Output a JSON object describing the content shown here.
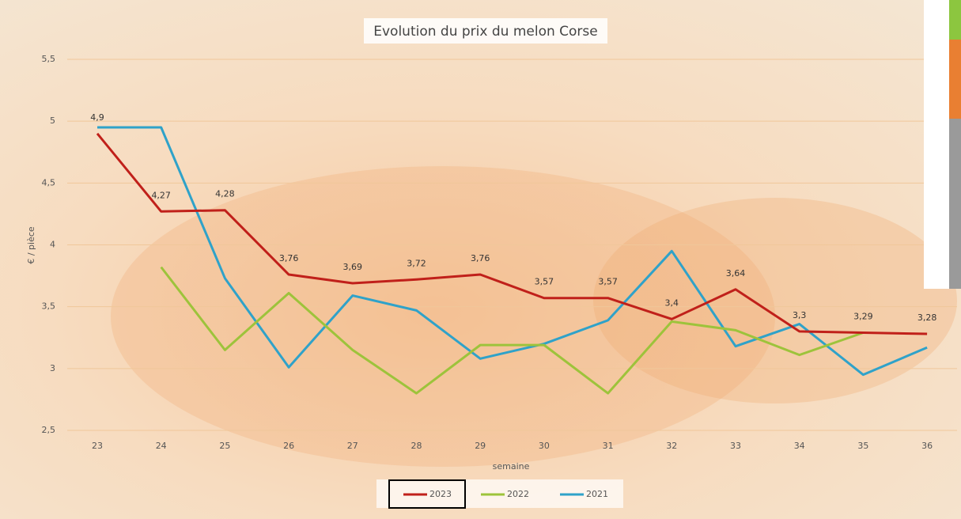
{
  "chart_data": {
    "type": "line",
    "title": "Evolution du prix du melon Corse",
    "x_label": "semaine",
    "y_label": "€ / pièce",
    "categories": [
      "23",
      "24",
      "25",
      "26",
      "27",
      "28",
      "29",
      "30",
      "31",
      "32",
      "33",
      "34",
      "35",
      "36"
    ],
    "series": [
      {
        "name": "2023",
        "color": "#c0201a",
        "values": [
          4.9,
          4.27,
          4.28,
          3.76,
          3.69,
          3.72,
          3.76,
          3.57,
          3.57,
          3.4,
          3.64,
          3.3,
          3.29,
          3.28
        ],
        "value_labels": [
          "4,9",
          "4,27",
          "4,28",
          "3,76",
          "3,69",
          "3,72",
          "3,76",
          "3,57",
          "3,57",
          "3,4",
          "3,64",
          "3,3",
          "3,29",
          "3,28"
        ]
      },
      {
        "name": "2022",
        "color": "#9dc33b",
        "values": [
          null,
          3.82,
          3.15,
          3.61,
          3.15,
          2.8,
          3.19,
          3.19,
          2.8,
          3.38,
          3.31,
          3.11,
          3.29,
          null
        ]
      },
      {
        "name": "2021",
        "color": "#2fa2c9",
        "values": [
          4.95,
          4.95,
          3.73,
          3.01,
          3.59,
          3.47,
          3.08,
          3.2,
          3.39,
          3.95,
          3.18,
          3.36,
          2.95,
          3.17
        ]
      }
    ],
    "ylim": [
      2.5,
      5.5
    ],
    "yticks": [
      {
        "value": 2.5,
        "label": "2,5"
      },
      3,
      {
        "value": 3.5,
        "label": "3,5"
      },
      4,
      {
        "value": 4.5,
        "label": "4,5"
      },
      5,
      {
        "value": 5.5,
        "label": "5,5"
      }
    ],
    "grid": true
  }
}
